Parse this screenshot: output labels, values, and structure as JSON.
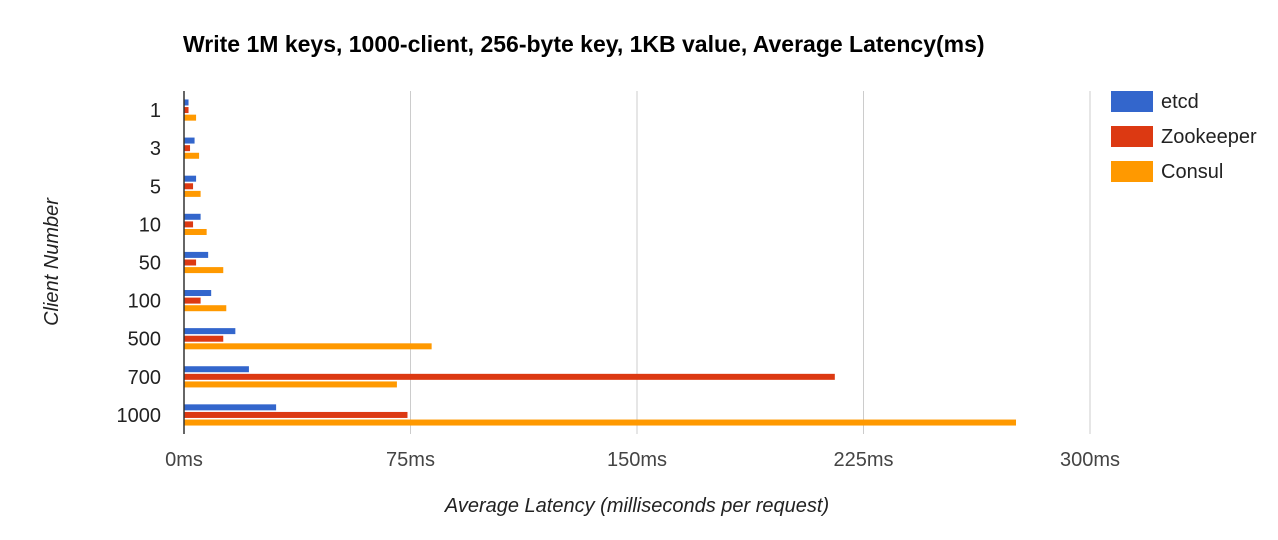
{
  "chart_data": {
    "type": "bar",
    "orientation": "horizontal",
    "title": "Write 1M keys, 1000-client, 256-byte key, 1KB value, Average Latency(ms)",
    "xlabel": "Average Latency (milliseconds per request)",
    "ylabel": "Client Number",
    "categories": [
      "1",
      "3",
      "5",
      "10",
      "50",
      "100",
      "500",
      "700",
      "1000"
    ],
    "xlim": [
      0,
      300
    ],
    "xticks": [
      0,
      75,
      150,
      225,
      300
    ],
    "xtick_labels": [
      "0ms",
      "75ms",
      "150ms",
      "225ms",
      "300ms"
    ],
    "grid": true,
    "legend_position": "right",
    "series": [
      {
        "name": "etcd",
        "color": "#3366cc",
        "values": [
          1.5,
          3.5,
          4,
          5.5,
          8,
          9,
          17,
          21.5,
          30.5
        ]
      },
      {
        "name": "Zookeeper",
        "color": "#dc3912",
        "values": [
          1.5,
          2,
          3,
          3,
          4,
          5.5,
          13,
          215.5,
          74
        ]
      },
      {
        "name": "Consul",
        "color": "#ff9900",
        "values": [
          4,
          5,
          5.5,
          7.5,
          13,
          14,
          82,
          70.5,
          275.5
        ]
      }
    ]
  }
}
